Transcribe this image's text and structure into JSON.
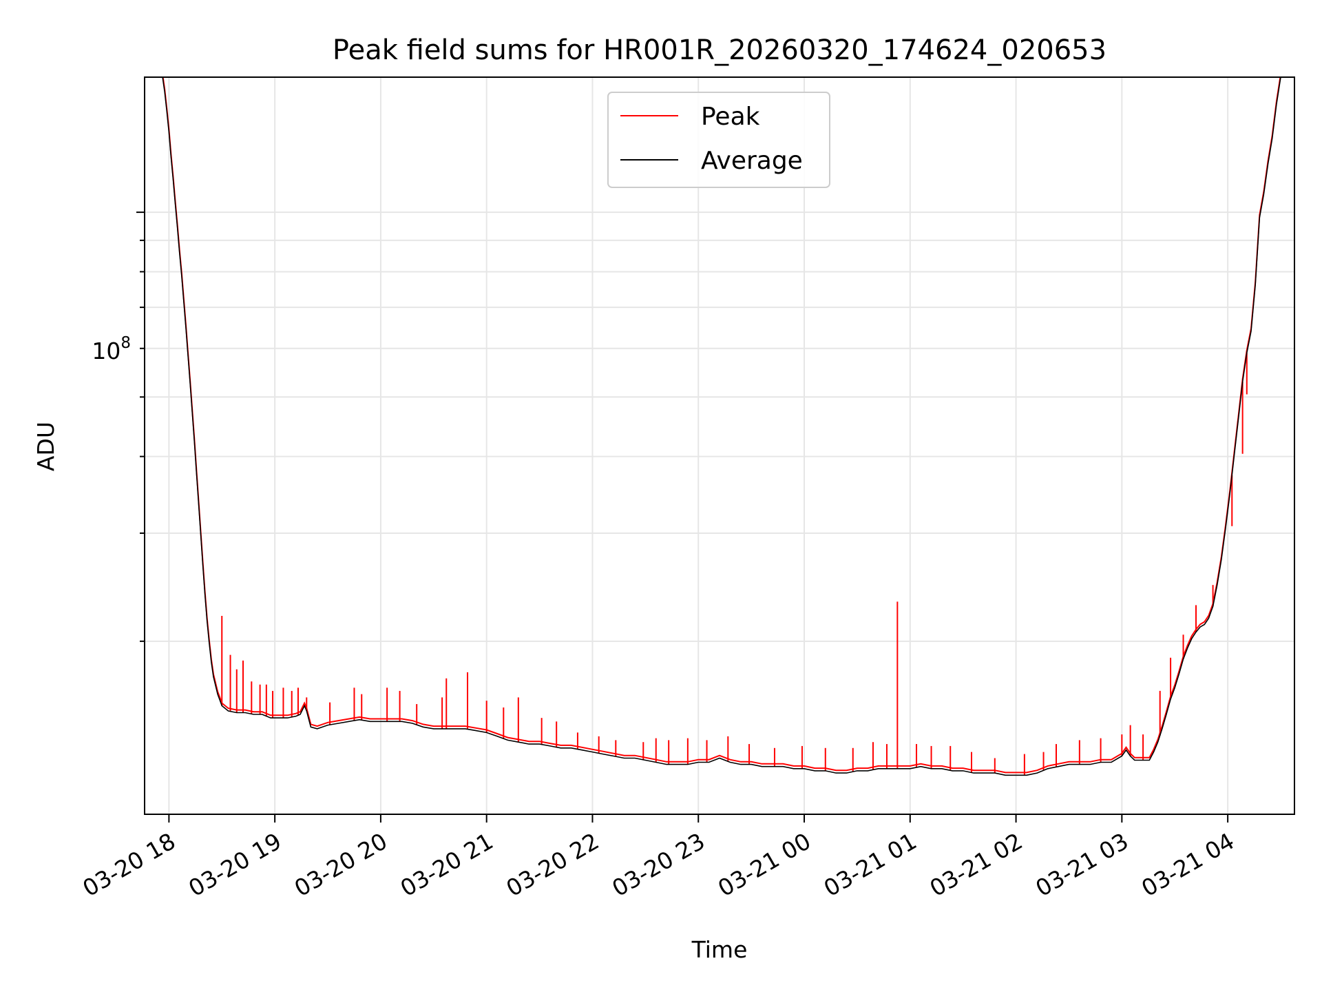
{
  "chart_data": {
    "type": "line",
    "title": "Peak field sums for HR001R_20260320_174624_020653",
    "xlabel": "Time",
    "ylabel": "ADU",
    "yscale": "log",
    "grid": true,
    "legend_position": "upper-center",
    "x_unit": "hours since 03-20 18:00",
    "xlim": [
      -0.23,
      10.63
    ],
    "ylim": [
      10450000,
      166000000
    ],
    "x_tick_labels": [
      "03-20 18",
      "03-20 19",
      "03-20 20",
      "03-20 21",
      "03-20 22",
      "03-20 23",
      "03-21 00",
      "03-21 01",
      "03-21 02",
      "03-21 03",
      "03-21 04"
    ],
    "x_tick_values": [
      0,
      1,
      2,
      3,
      4,
      5,
      6,
      7,
      8,
      9,
      10
    ],
    "y_major_tick": {
      "value": 100000000,
      "label_base": "10",
      "label_exponent": "8"
    },
    "y_minor_tick_values": [
      20000000,
      30000000,
      40000000,
      50000000,
      60000000,
      70000000,
      80000000,
      90000000,
      200000000
    ],
    "series": [
      {
        "name": "Peak",
        "color": "#ff0000",
        "role": "spikes",
        "spikes": [
          [
            0.5,
            22000000
          ],
          [
            0.58,
            19000000
          ],
          [
            0.64,
            18000000
          ],
          [
            0.7,
            18600000
          ],
          [
            0.78,
            17200000
          ],
          [
            0.86,
            17000000
          ],
          [
            0.92,
            17000000
          ],
          [
            0.98,
            16600000
          ],
          [
            1.08,
            16800000
          ],
          [
            1.16,
            16600000
          ],
          [
            1.22,
            16800000
          ],
          [
            1.3,
            16200000
          ],
          [
            1.52,
            15900000
          ],
          [
            1.75,
            16800000
          ],
          [
            1.82,
            16400000
          ],
          [
            2.06,
            16800000
          ],
          [
            2.18,
            16600000
          ],
          [
            2.34,
            15800000
          ],
          [
            2.58,
            16200000
          ],
          [
            2.62,
            17400000
          ],
          [
            2.82,
            17800000
          ],
          [
            3.0,
            16000000
          ],
          [
            3.16,
            15600000
          ],
          [
            3.3,
            16200000
          ],
          [
            3.52,
            15000000
          ],
          [
            3.66,
            14800000
          ],
          [
            3.86,
            14200000
          ],
          [
            4.06,
            14000000
          ],
          [
            4.22,
            13800000
          ],
          [
            4.48,
            13700000
          ],
          [
            4.6,
            13900000
          ],
          [
            4.72,
            13800000
          ],
          [
            4.9,
            13900000
          ],
          [
            5.08,
            13800000
          ],
          [
            5.28,
            14000000
          ],
          [
            5.48,
            13600000
          ],
          [
            5.72,
            13400000
          ],
          [
            5.98,
            13500000
          ],
          [
            6.2,
            13400000
          ],
          [
            6.46,
            13400000
          ],
          [
            6.65,
            13700000
          ],
          [
            6.78,
            13600000
          ],
          [
            6.88,
            23200000
          ],
          [
            7.06,
            13600000
          ],
          [
            7.2,
            13500000
          ],
          [
            7.38,
            13500000
          ],
          [
            7.58,
            13200000
          ],
          [
            7.8,
            12900000
          ],
          [
            8.08,
            13100000
          ],
          [
            8.26,
            13200000
          ],
          [
            8.38,
            13600000
          ],
          [
            8.6,
            13800000
          ],
          [
            8.8,
            13900000
          ],
          [
            9.0,
            14100000
          ],
          [
            9.08,
            14600000
          ],
          [
            9.2,
            14100000
          ],
          [
            9.36,
            16600000
          ],
          [
            9.46,
            18800000
          ],
          [
            9.58,
            20500000
          ],
          [
            9.7,
            22900000
          ],
          [
            9.86,
            24700000
          ],
          [
            10.04,
            30800000
          ],
          [
            10.14,
            40400000
          ],
          [
            10.18,
            50500000
          ]
        ]
      },
      {
        "name": "Average",
        "color": "#000000",
        "role": "baseline",
        "points": [
          [
            -0.23,
            166000000
          ],
          [
            -0.06,
            166000000
          ],
          [
            -0.04,
            157000000
          ],
          [
            -0.02,
            146000000
          ],
          [
            0.0,
            135000000
          ],
          [
            0.02,
            123000000
          ],
          [
            0.04,
            113000000
          ],
          [
            0.06,
            103000000
          ],
          [
            0.08,
            94300000
          ],
          [
            0.1,
            86000000
          ],
          [
            0.12,
            78900000
          ],
          [
            0.14,
            71500000
          ],
          [
            0.16,
            64800000
          ],
          [
            0.18,
            58500000
          ],
          [
            0.2,
            52700000
          ],
          [
            0.22,
            47200000
          ],
          [
            0.24,
            42300000
          ],
          [
            0.26,
            37700000
          ],
          [
            0.28,
            33600000
          ],
          [
            0.3,
            29900000
          ],
          [
            0.32,
            26600000
          ],
          [
            0.34,
            23800000
          ],
          [
            0.36,
            21600000
          ],
          [
            0.38,
            19900000
          ],
          [
            0.4,
            18500000
          ],
          [
            0.42,
            17500000
          ],
          [
            0.46,
            16400000
          ],
          [
            0.5,
            15700000
          ],
          [
            0.56,
            15400000
          ],
          [
            0.64,
            15300000
          ],
          [
            0.72,
            15300000
          ],
          [
            0.8,
            15200000
          ],
          [
            0.88,
            15200000
          ],
          [
            0.96,
            15000000
          ],
          [
            1.04,
            15000000
          ],
          [
            1.12,
            15000000
          ],
          [
            1.2,
            15100000
          ],
          [
            1.24,
            15200000
          ],
          [
            1.28,
            15700000
          ],
          [
            1.3,
            15400000
          ],
          [
            1.34,
            14500000
          ],
          [
            1.4,
            14400000
          ],
          [
            1.5,
            14600000
          ],
          [
            1.6,
            14700000
          ],
          [
            1.7,
            14800000
          ],
          [
            1.8,
            14900000
          ],
          [
            1.9,
            14800000
          ],
          [
            2.0,
            14800000
          ],
          [
            2.1,
            14800000
          ],
          [
            2.2,
            14800000
          ],
          [
            2.3,
            14700000
          ],
          [
            2.4,
            14500000
          ],
          [
            2.5,
            14400000
          ],
          [
            2.6,
            14400000
          ],
          [
            2.7,
            14400000
          ],
          [
            2.8,
            14400000
          ],
          [
            2.9,
            14300000
          ],
          [
            3.0,
            14200000
          ],
          [
            3.1,
            14000000
          ],
          [
            3.2,
            13800000
          ],
          [
            3.3,
            13700000
          ],
          [
            3.4,
            13600000
          ],
          [
            3.5,
            13600000
          ],
          [
            3.6,
            13500000
          ],
          [
            3.7,
            13400000
          ],
          [
            3.8,
            13400000
          ],
          [
            3.9,
            13300000
          ],
          [
            4.0,
            13200000
          ],
          [
            4.1,
            13100000
          ],
          [
            4.2,
            13000000
          ],
          [
            4.3,
            12900000
          ],
          [
            4.4,
            12900000
          ],
          [
            4.5,
            12800000
          ],
          [
            4.6,
            12700000
          ],
          [
            4.7,
            12600000
          ],
          [
            4.8,
            12600000
          ],
          [
            4.9,
            12600000
          ],
          [
            5.0,
            12700000
          ],
          [
            5.1,
            12700000
          ],
          [
            5.2,
            12900000
          ],
          [
            5.3,
            12700000
          ],
          [
            5.4,
            12600000
          ],
          [
            5.5,
            12600000
          ],
          [
            5.6,
            12500000
          ],
          [
            5.7,
            12500000
          ],
          [
            5.8,
            12500000
          ],
          [
            5.9,
            12400000
          ],
          [
            6.0,
            12400000
          ],
          [
            6.1,
            12300000
          ],
          [
            6.2,
            12300000
          ],
          [
            6.3,
            12200000
          ],
          [
            6.4,
            12200000
          ],
          [
            6.5,
            12300000
          ],
          [
            6.6,
            12300000
          ],
          [
            6.7,
            12400000
          ],
          [
            6.8,
            12400000
          ],
          [
            6.9,
            12400000
          ],
          [
            7.0,
            12400000
          ],
          [
            7.1,
            12500000
          ],
          [
            7.2,
            12400000
          ],
          [
            7.3,
            12400000
          ],
          [
            7.4,
            12300000
          ],
          [
            7.5,
            12300000
          ],
          [
            7.6,
            12200000
          ],
          [
            7.7,
            12200000
          ],
          [
            7.8,
            12200000
          ],
          [
            7.9,
            12100000
          ],
          [
            8.0,
            12100000
          ],
          [
            8.1,
            12100000
          ],
          [
            8.2,
            12200000
          ],
          [
            8.3,
            12400000
          ],
          [
            8.4,
            12500000
          ],
          [
            8.5,
            12600000
          ],
          [
            8.6,
            12600000
          ],
          [
            8.7,
            12600000
          ],
          [
            8.8,
            12700000
          ],
          [
            8.9,
            12700000
          ],
          [
            9.0,
            13000000
          ],
          [
            9.04,
            13300000
          ],
          [
            9.08,
            13000000
          ],
          [
            9.12,
            12800000
          ],
          [
            9.2,
            12800000
          ],
          [
            9.26,
            12800000
          ],
          [
            9.3,
            13200000
          ],
          [
            9.34,
            13700000
          ],
          [
            9.38,
            14400000
          ],
          [
            9.42,
            15200000
          ],
          [
            9.46,
            16100000
          ],
          [
            9.5,
            16800000
          ],
          [
            9.54,
            17700000
          ],
          [
            9.58,
            18700000
          ],
          [
            9.62,
            19500000
          ],
          [
            9.66,
            20200000
          ],
          [
            9.7,
            20700000
          ],
          [
            9.74,
            21100000
          ],
          [
            9.78,
            21300000
          ],
          [
            9.82,
            21800000
          ],
          [
            9.86,
            22800000
          ],
          [
            9.9,
            24700000
          ],
          [
            9.94,
            27200000
          ],
          [
            9.98,
            30600000
          ],
          [
            10.02,
            34800000
          ],
          [
            10.06,
            40000000
          ],
          [
            10.1,
            46000000
          ],
          [
            10.14,
            53000000
          ],
          [
            10.18,
            59000000
          ],
          [
            10.22,
            64000000
          ],
          [
            10.26,
            76000000
          ],
          [
            10.3,
            98000000
          ],
          [
            10.34,
            107000000
          ],
          [
            10.38,
            120000000
          ],
          [
            10.42,
            132000000
          ],
          [
            10.46,
            150000000
          ],
          [
            10.5,
            166000000
          ],
          [
            10.63,
            166000000
          ]
        ]
      }
    ]
  }
}
